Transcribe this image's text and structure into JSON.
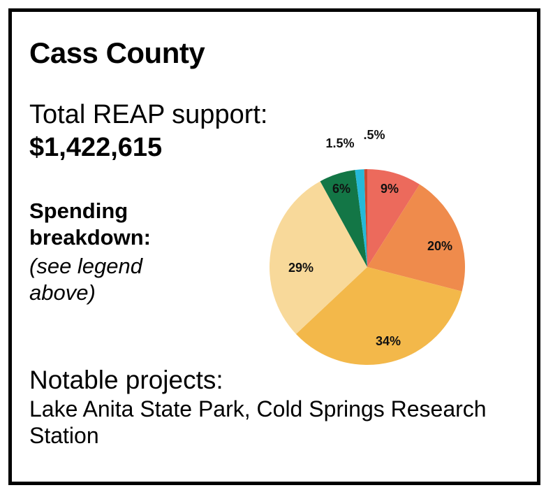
{
  "header": {
    "title": "Cass County"
  },
  "support": {
    "label": "Total REAP support:",
    "value": "$1,422,615"
  },
  "spending": {
    "heading": "Spending breakdown:",
    "note": "(see legend above)"
  },
  "notable": {
    "heading": "Notable projects:",
    "text": "Lake Anita State Park, Cold Springs Research Station"
  },
  "chart_data": {
    "type": "pie",
    "title": "",
    "slices": [
      {
        "label": "9%",
        "value": 9,
        "color": "#ec6a5c"
      },
      {
        "label": "20%",
        "value": 20,
        "color": "#ef8b4c"
      },
      {
        "label": "34%",
        "value": 34,
        "color": "#f3b84a"
      },
      {
        "label": "29%",
        "value": 29,
        "color": "#f8d99a"
      },
      {
        "label": "6%",
        "value": 6,
        "color": "#137646"
      },
      {
        "label": "1.5%",
        "value": 1.5,
        "color": "#25b9d7"
      },
      {
        "label": ".5%",
        "value": 0.5,
        "color": "#c9492f"
      }
    ]
  }
}
